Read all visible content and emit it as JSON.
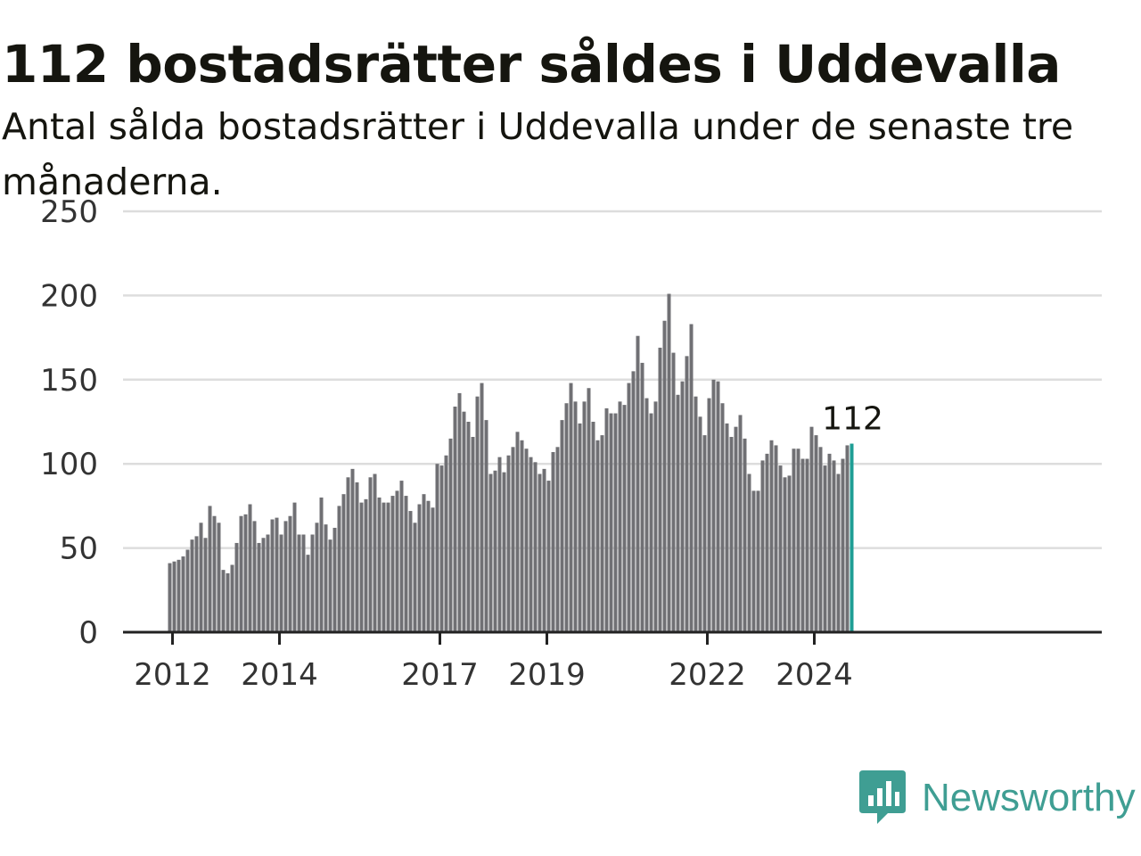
{
  "chart_data": {
    "type": "bar",
    "title": "112 bostadsrätter såldes i Uddevalla",
    "subtitle": "Antal sålda bostadsrätter i Uddevalla under de senaste tre månaderna.",
    "xlabel": "",
    "ylabel": "",
    "ylim": [
      0,
      250
    ],
    "yticks": [
      0,
      50,
      100,
      150,
      200,
      250
    ],
    "grid": true,
    "legend": "none",
    "first_month": "2012-01",
    "xtick_labels": [
      "2012",
      "2014",
      "2017",
      "2019",
      "2022",
      "2024"
    ],
    "values": [
      41,
      42,
      43,
      45,
      49,
      55,
      57,
      65,
      56,
      75,
      69,
      65,
      37,
      35,
      40,
      53,
      69,
      70,
      76,
      66,
      53,
      56,
      58,
      67,
      68,
      58,
      66,
      69,
      77,
      58,
      58,
      46,
      58,
      65,
      80,
      64,
      55,
      62,
      75,
      82,
      92,
      97,
      89,
      77,
      79,
      92,
      94,
      80,
      77,
      77,
      81,
      84,
      90,
      81,
      72,
      65,
      76,
      82,
      78,
      74,
      100,
      99,
      105,
      115,
      134,
      142,
      131,
      125,
      116,
      140,
      148,
      126,
      94,
      96,
      104,
      95,
      105,
      110,
      119,
      114,
      109,
      104,
      101,
      94,
      97,
      90,
      107,
      110,
      126,
      136,
      148,
      137,
      124,
      137,
      145,
      125,
      114,
      117,
      133,
      130,
      130,
      137,
      135,
      148,
      155,
      176,
      160,
      139,
      130,
      137,
      169,
      185,
      201,
      166,
      141,
      149,
      164,
      183,
      140,
      128,
      117,
      139,
      150,
      149,
      136,
      124,
      116,
      122,
      129,
      115,
      94,
      84,
      84,
      102,
      106,
      114,
      111,
      99,
      92,
      93,
      109,
      109,
      103,
      103,
      122,
      117,
      110,
      99,
      106,
      102,
      94,
      103,
      111,
      112
    ],
    "highlight_index": 153,
    "highlight_label": "112",
    "colors": {
      "bar": "#707074",
      "highlight": "#1f9e95",
      "grid": "#dddddd",
      "axis": "#222222"
    }
  },
  "brand": {
    "name": "Newsworthy",
    "icon": "bar-chart-speech-bubble-icon",
    "color": "#3f9e93"
  }
}
